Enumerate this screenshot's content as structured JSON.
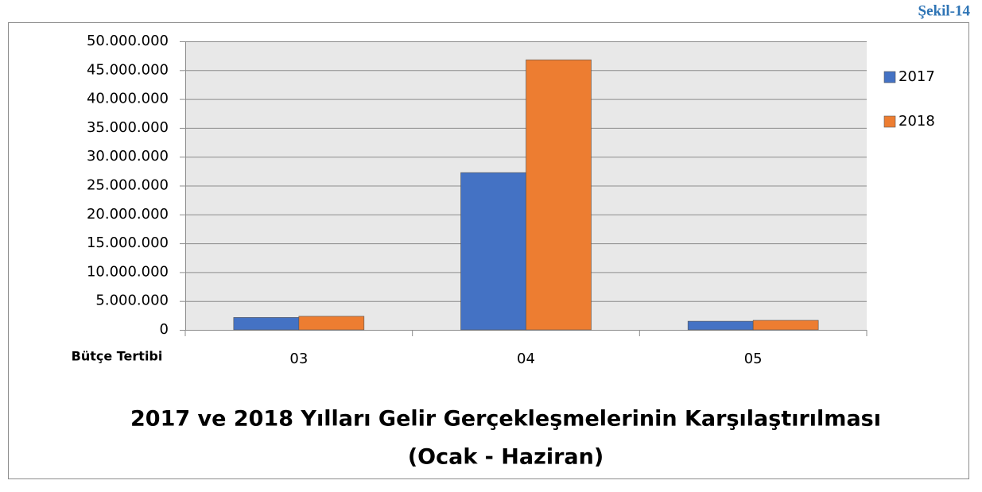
{
  "figure_label": "Şekil-14",
  "chart_data": {
    "type": "bar",
    "title": "2017 ve 2018 Yılları Gelir Gerçekleşmelerinin Karşılaştırılması",
    "subtitle": "(Ocak - Haziran)",
    "xlabel": "Bütçe Tertibi",
    "categories": [
      "03",
      "04",
      "05"
    ],
    "series": [
      {
        "name": "2017",
        "color": "#4472c4",
        "values": [
          2150000,
          27250000,
          1500000
        ]
      },
      {
        "name": "2018",
        "color": "#ed7d31",
        "values": [
          2350000,
          46800000,
          1650000
        ]
      }
    ],
    "ylim": [
      0,
      50000000
    ],
    "yticks": [
      0,
      {
        "value": 5000000,
        "label": "5.000.000"
      },
      {
        "value": 10000000,
        "label": "10.000.000"
      },
      {
        "value": 15000000,
        "label": "15.000.000"
      },
      {
        "value": 20000000,
        "label": "20.000.000"
      },
      {
        "value": 25000000,
        "label": "25.000.000"
      },
      {
        "value": 30000000,
        "label": "30.000.000"
      },
      {
        "value": 35000000,
        "label": "35.000.000"
      },
      {
        "value": 40000000,
        "label": "40.000.000"
      },
      {
        "value": 45000000,
        "label": "45.000.000"
      },
      {
        "value": 50000000,
        "label": "50.000.000"
      }
    ],
    "grid": true,
    "legend": "right"
  }
}
